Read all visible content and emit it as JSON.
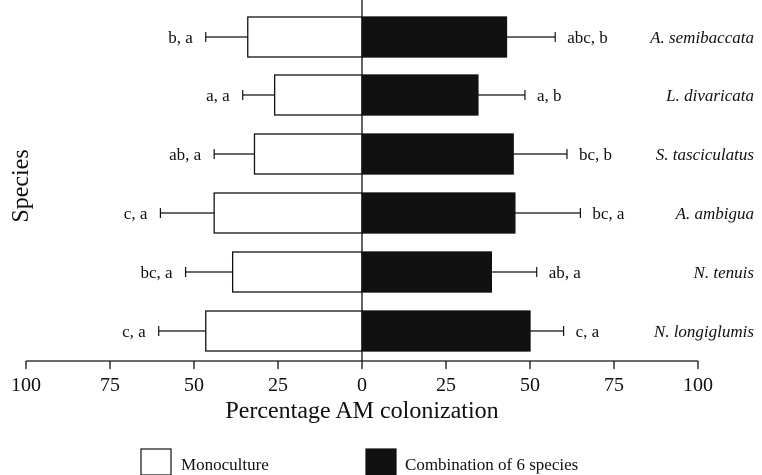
{
  "chart_data": {
    "type": "bar",
    "orientation": "horizontal-diverging",
    "ylabel": "Species",
    "xlabel": "Percentage AM colonization",
    "xlim": [
      -100,
      100
    ],
    "xticks": [
      -100,
      -75,
      -50,
      -25,
      0,
      25,
      50,
      75,
      100
    ],
    "xtick_labels": [
      "100",
      "75",
      "50",
      "25",
      "0",
      "25",
      "50",
      "75",
      "100"
    ],
    "categories": [
      "A. semibaccata",
      "L. divaricata",
      "S. tasciculatus",
      "A. ambigua",
      "N. tenuis",
      "N. longiglumis"
    ],
    "series": [
      {
        "name": "Monoculture",
        "side": "left",
        "color": "#ffffff",
        "values": [
          34,
          26,
          32,
          44,
          38.5,
          46.5
        ],
        "errors": [
          12.5,
          9.5,
          12,
          16,
          14,
          14
        ],
        "annotations": [
          "b, a",
          "a, a",
          "ab, a",
          "c, a",
          "bc, a",
          "c, a"
        ]
      },
      {
        "name": "Combination of 6 species",
        "side": "right",
        "color": "#111111",
        "values": [
          43,
          34.5,
          45,
          45.5,
          38.5,
          50
        ],
        "errors": [
          14.5,
          14,
          16,
          19.5,
          13.5,
          10
        ],
        "annotations": [
          "abc, b",
          "a, b",
          "bc, b",
          "bc, a",
          "ab, a",
          "c, a"
        ]
      }
    ],
    "grid": false,
    "legend_position": "bottom"
  }
}
